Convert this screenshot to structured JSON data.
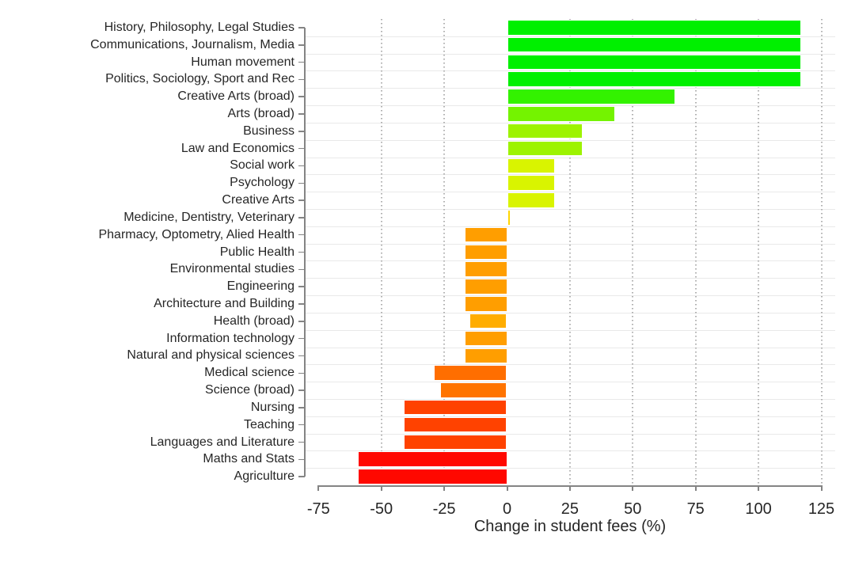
{
  "chart_data": {
    "type": "bar",
    "orientation": "horizontal",
    "title": "",
    "xlabel": "Change in student fees (%)",
    "ylabel": "",
    "xlim": [
      -75,
      125
    ],
    "xticks": [
      -75,
      -50,
      -25,
      0,
      25,
      50,
      75,
      100,
      125
    ],
    "xtick_labels": [
      "-75",
      "-50",
      "-25",
      "0",
      "25",
      "50",
      "75",
      "100",
      "125"
    ],
    "grid_xticks": [
      -50,
      -25,
      25,
      50,
      75,
      100,
      125
    ],
    "grid": "horizontal-solid-and-vertical-dotted",
    "legend": "none",
    "categories": [
      "History, Philosophy, Legal Studies",
      "Communications, Journalism, Media",
      "Human movement",
      "Politics, Sociology, Sport and Rec",
      "Creative Arts (broad)",
      "Arts (broad)",
      "Business",
      "Law and Economics",
      "Social work",
      "Psychology",
      "Creative Arts",
      "Medicine, Dentistry, Veterinary",
      "Pharmacy, Optometry, Alied Health",
      "Public Health",
      "Environmental studies",
      "Engineering",
      "Architecture and Building",
      "Health (broad)",
      "Information technology",
      "Natural and physical sciences",
      "Medical science",
      "Science (broad)",
      "Nursing",
      "Teaching",
      "Languages and Literature",
      "Maths and Stats",
      "Agriculture"
    ],
    "values": [
      117,
      117,
      117,
      117,
      67,
      43,
      30,
      30,
      19,
      19,
      19,
      1.3,
      -17,
      -17,
      -17,
      -17,
      -17,
      -15,
      -17,
      -17,
      -29,
      -26.5,
      -41,
      -41,
      -41,
      -59.5,
      -59.5
    ],
    "bar_colors": [
      "#00f000",
      "#00f000",
      "#00f000",
      "#00f000",
      "#33f200",
      "#74f300",
      "#9df300",
      "#9df300",
      "#d9f400",
      "#d9f400",
      "#d9f400",
      "#ffd600",
      "#ff9e00",
      "#ff9e00",
      "#ff9e00",
      "#ff9e00",
      "#ff9e00",
      "#ffad00",
      "#ff9e00",
      "#ff9e00",
      "#ff6e00",
      "#ff7400",
      "#ff4200",
      "#ff4200",
      "#ff4200",
      "#ff0800",
      "#ff0800"
    ],
    "colors": {
      "background": "#ffffff",
      "axis": "#848484",
      "text": "#262626",
      "h_grid": "#e9e9e9",
      "v_grid_dots": "#b0b0b0",
      "bar_border": "#ffffff"
    }
  }
}
